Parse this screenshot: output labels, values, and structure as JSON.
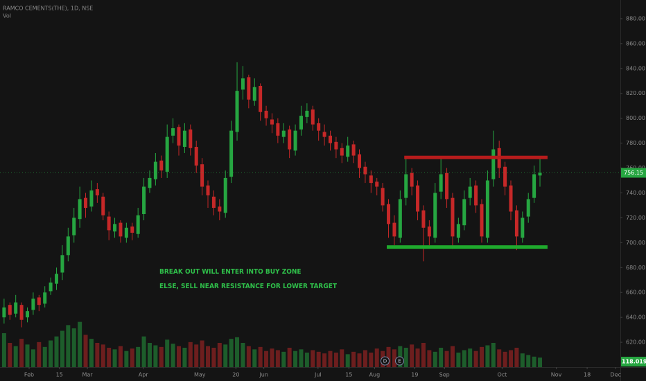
{
  "chart_data": {
    "type": "candlestick",
    "title": "RAMCO CEMENTS(THE), 1D, NSE",
    "volume_title": "Vol",
    "up_color": "#26a641",
    "down_color": "#c62828",
    "ylim": [
      600,
      895
    ],
    "vol_ylim": [
      0,
      600000
    ],
    "xlim": [
      -0.7,
      105.8
    ],
    "yticks": [
      {
        "value": 620,
        "label": "620.00"
      },
      {
        "value": 640,
        "label": "640.00"
      },
      {
        "value": 660,
        "label": "660.00"
      },
      {
        "value": 680,
        "label": "680.00"
      },
      {
        "value": 700,
        "label": "700.00"
      },
      {
        "value": 720,
        "label": "720.00"
      },
      {
        "value": 740,
        "label": "740.00"
      },
      {
        "value": 760,
        "label": "760.00"
      },
      {
        "value": 780,
        "label": "780.00"
      },
      {
        "value": 800,
        "label": "800.00"
      },
      {
        "value": 820,
        "label": "820.00"
      },
      {
        "value": 840,
        "label": "840.00"
      },
      {
        "value": 860,
        "label": "860.00"
      },
      {
        "value": 880,
        "label": "880.00"
      }
    ],
    "xticks": [
      {
        "value": 4.3,
        "label": "Feb"
      },
      {
        "value": 9.5,
        "label": "15"
      },
      {
        "value": 14.3,
        "label": "Mar"
      },
      {
        "value": 23.9,
        "label": "Apr"
      },
      {
        "value": 33.6,
        "label": "May"
      },
      {
        "value": 39.8,
        "label": "20"
      },
      {
        "value": 44.6,
        "label": "Jun"
      },
      {
        "value": 53.9,
        "label": "Jul"
      },
      {
        "value": 59.2,
        "label": "15"
      },
      {
        "value": 63.6,
        "label": "Aug"
      },
      {
        "value": 70.5,
        "label": "19"
      },
      {
        "value": 75.6,
        "label": "Sep"
      },
      {
        "value": 85.5,
        "label": "Oct"
      },
      {
        "value": 94.8,
        "label": "Nov"
      },
      {
        "value": 100.1,
        "label": "18"
      },
      {
        "value": 105,
        "label": "Dec"
      }
    ],
    "open": [
      640,
      650,
      643,
      650,
      640,
      646,
      656,
      651,
      661,
      667,
      676,
      690,
      706,
      719,
      736,
      729,
      743,
      737,
      721,
      709,
      716,
      704,
      713,
      707,
      723,
      744,
      751,
      766,
      757,
      786,
      793,
      777,
      791,
      777,
      763,
      746,
      737,
      729,
      724,
      753,
      789,
      823,
      833,
      814,
      826,
      806,
      799,
      796,
      785,
      791,
      774,
      791,
      801,
      807,
      796,
      789,
      786,
      781,
      776,
      769,
      779,
      771,
      761,
      754,
      749,
      744,
      731,
      716,
      704,
      736,
      756,
      746,
      726,
      713,
      704,
      741,
      756,
      736,
      704,
      714,
      736,
      746,
      731,
      704,
      751,
      776,
      761,
      746,
      726,
      704,
      721,
      736,
      754
    ],
    "high": [
      655,
      652,
      658,
      652,
      648,
      660,
      658,
      665,
      672,
      680,
      698,
      712,
      728,
      745,
      740,
      750,
      748,
      740,
      725,
      720,
      718,
      716,
      716,
      728,
      752,
      758,
      772,
      770,
      795,
      800,
      795,
      796,
      795,
      782,
      768,
      750,
      742,
      735,
      758,
      798,
      845,
      842,
      835,
      832,
      828,
      810,
      804,
      800,
      796,
      794,
      795,
      810,
      812,
      810,
      800,
      795,
      790,
      785,
      780,
      785,
      782,
      775,
      765,
      758,
      752,
      748,
      735,
      722,
      742,
      768,
      760,
      750,
      730,
      718,
      748,
      768,
      760,
      740,
      720,
      742,
      752,
      750,
      735,
      758,
      790,
      782,
      765,
      750,
      730,
      725,
      740,
      762,
      768
    ],
    "low": [
      635,
      638,
      640,
      632,
      636,
      642,
      645,
      648,
      658,
      662,
      670,
      685,
      700,
      712,
      720,
      725,
      732,
      718,
      702,
      704,
      700,
      700,
      702,
      704,
      718,
      740,
      746,
      752,
      752,
      780,
      770,
      772,
      770,
      756,
      738,
      728,
      722,
      718,
      720,
      748,
      782,
      815,
      808,
      810,
      798,
      794,
      788,
      780,
      780,
      768,
      770,
      786,
      796,
      790,
      782,
      778,
      774,
      768,
      764,
      765,
      764,
      752,
      748,
      740,
      738,
      725,
      704,
      698,
      700,
      730,
      738,
      718,
      685,
      698,
      700,
      735,
      728,
      695,
      700,
      710,
      730,
      724,
      700,
      700,
      745,
      752,
      738,
      718,
      694,
      700,
      716,
      732,
      745
    ],
    "close": [
      648,
      642,
      652,
      638,
      645,
      655,
      650,
      660,
      668,
      675,
      690,
      705,
      720,
      735,
      728,
      742,
      738,
      722,
      710,
      715,
      705,
      712,
      708,
      722,
      745,
      752,
      765,
      758,
      785,
      792,
      778,
      790,
      776,
      762,
      745,
      738,
      728,
      725,
      752,
      790,
      822,
      832,
      815,
      825,
      805,
      800,
      795,
      786,
      790,
      775,
      790,
      802,
      806,
      795,
      790,
      785,
      780,
      775,
      770,
      778,
      770,
      760,
      755,
      748,
      745,
      730,
      715,
      705,
      735,
      755,
      745,
      725,
      712,
      705,
      740,
      755,
      735,
      705,
      715,
      735,
      745,
      730,
      705,
      750,
      775,
      760,
      745,
      725,
      705,
      720,
      735,
      755,
      756.15
    ],
    "volume": [
      420000,
      300000,
      260000,
      350000,
      280000,
      220000,
      310000,
      250000,
      330000,
      380000,
      450000,
      520000,
      480000,
      560000,
      400000,
      350000,
      300000,
      280000,
      240000,
      220000,
      260000,
      200000,
      230000,
      250000,
      380000,
      300000,
      270000,
      250000,
      340000,
      290000,
      260000,
      240000,
      310000,
      280000,
      330000,
      260000,
      240000,
      300000,
      280000,
      350000,
      370000,
      300000,
      260000,
      220000,
      250000,
      200000,
      230000,
      210000,
      190000,
      240000,
      200000,
      220000,
      180000,
      210000,
      190000,
      170000,
      200000,
      180000,
      220000,
      160000,
      190000,
      170000,
      210000,
      180000,
      230000,
      200000,
      250000,
      220000,
      260000,
      240000,
      280000,
      230000,
      300000,
      210000,
      190000,
      240000,
      200000,
      260000,
      180000,
      210000,
      230000,
      200000,
      250000,
      270000,
      300000,
      220000,
      190000,
      210000,
      240000,
      170000,
      150000,
      130000,
      118019
    ],
    "last_volume_label": "118.019K",
    "resistance": {
      "x": [
        68.7,
        93.3
      ],
      "y": 768.5,
      "color": "#b71c1c"
    },
    "support": {
      "x": [
        65.7,
        93.3
      ],
      "y": 696.5,
      "color": "#1faa2d"
    },
    "annotations": [
      "BREAK OUT WILL ENTER INTO BUY ZONE",
      "ELSE, SELL NEAR RESISTANCE FOR LOWER TARGET"
    ],
    "annotation_color": "#2fbf4a",
    "events": [
      {
        "x": 65.4,
        "label": "D"
      },
      {
        "x": 67.9,
        "label": "E"
      }
    ]
  }
}
